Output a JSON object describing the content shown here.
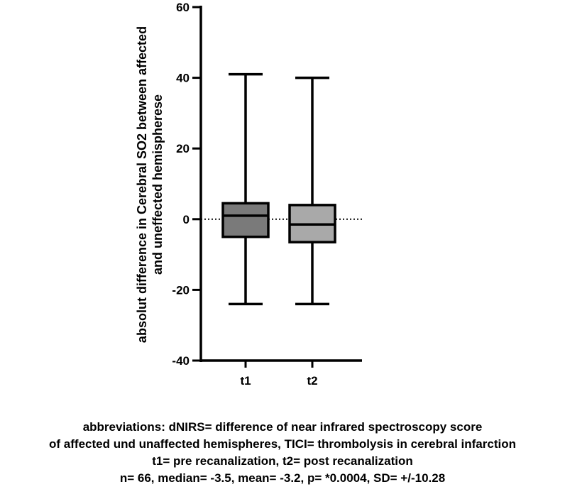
{
  "chart_data": {
    "type": "box",
    "categories": [
      "t1",
      "t2"
    ],
    "boxes": [
      {
        "label": "t1",
        "min": -24,
        "q1": -5,
        "median": 1,
        "q3": 4.5,
        "max": 41,
        "color": "#7a7a7a"
      },
      {
        "label": "t2",
        "min": -24,
        "q1": -6.5,
        "median": -1.5,
        "q3": 4,
        "max": 40,
        "color": "#a9a9a9"
      }
    ],
    "ylabel_lines": [
      "absolut difference in Cerebral SO2 between affected",
      "and uneffected hemispherese"
    ],
    "ylim": [
      -40,
      60
    ],
    "yticks": [
      "60",
      "40",
      "20",
      "0",
      "-20",
      "-40"
    ],
    "reference_line_y": 0,
    "grid": false
  },
  "caption": {
    "lines": [
      "abbreviations: dNIRS= difference of near infrared spectroscopy score",
      "of affected und unaffected hemispheres, TICI= thrombolysis in cerebral infarction",
      "t1= pre recanalization, t2= post recanalization",
      "n= 66, median= -3.5, mean= -3.2, p= *0.0004, SD= +/-10.28"
    ]
  }
}
